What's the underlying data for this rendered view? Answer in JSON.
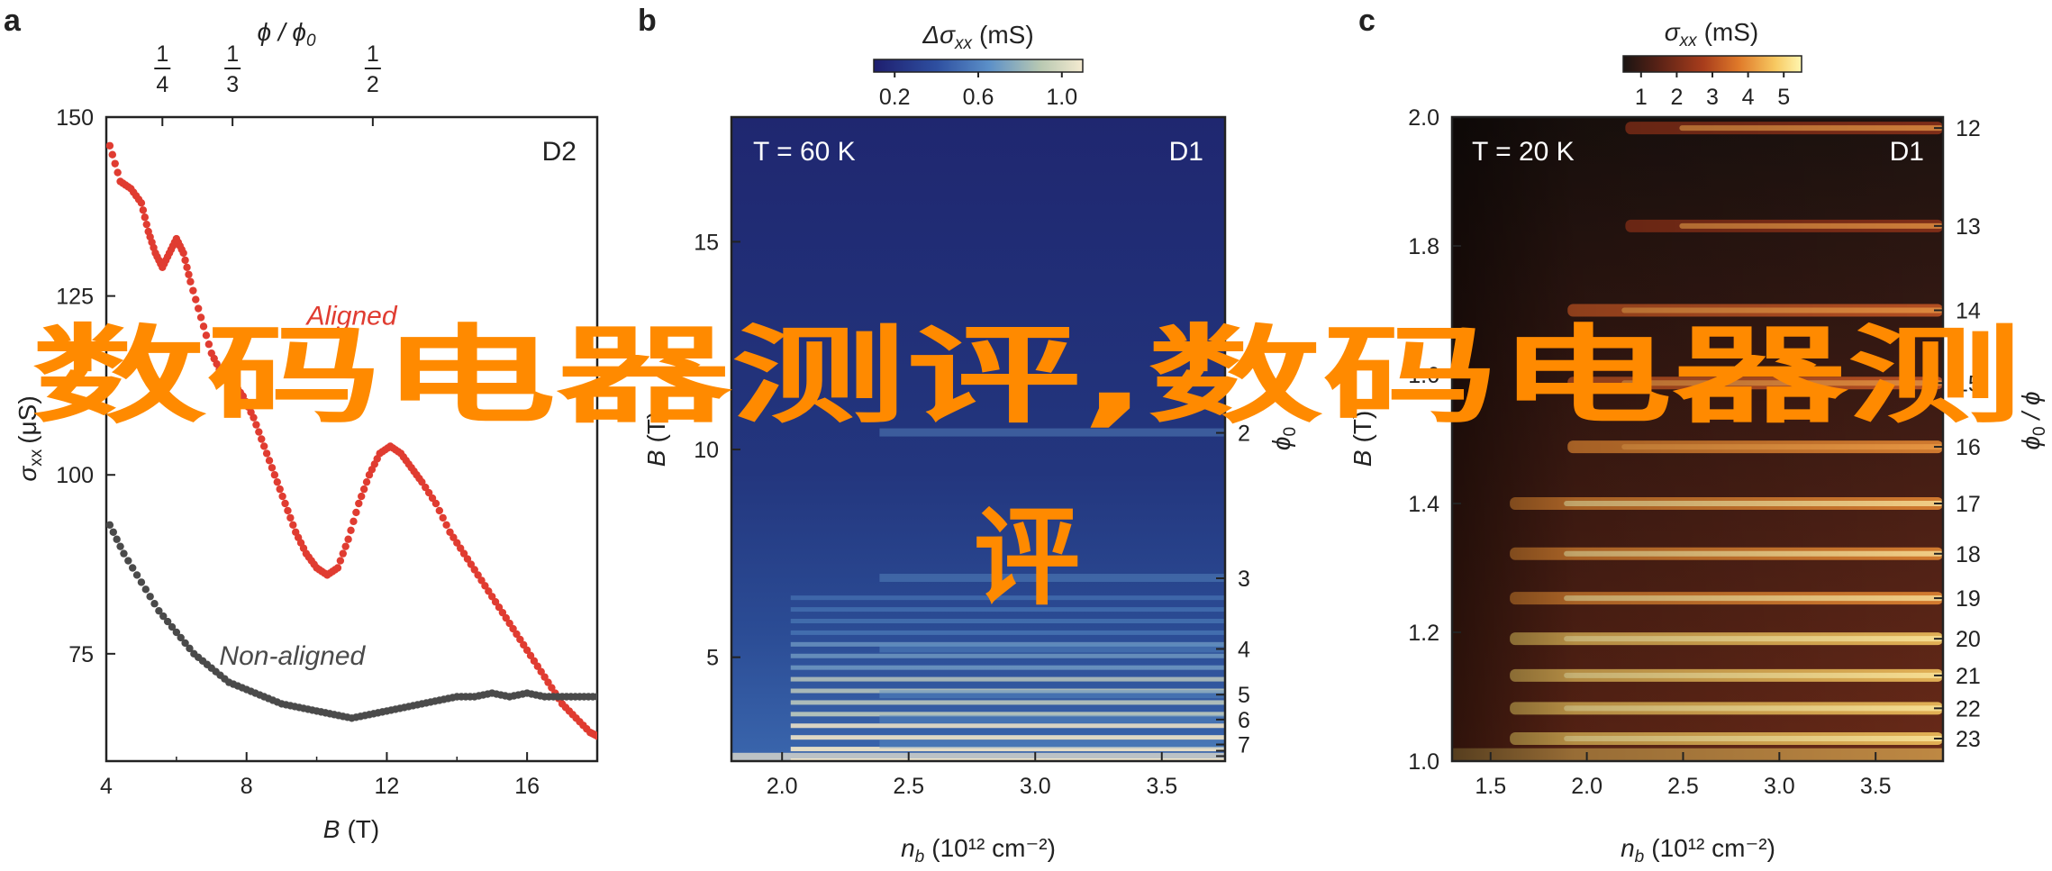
{
  "chart_data": [
    {
      "panel": "a",
      "type": "scatter",
      "xlabel_var": "B",
      "xlabel_unit": "(T)",
      "ylabel_var": "σ",
      "ylabel_sub": "xx",
      "ylabel_unit": "(μS)",
      "top_axis_label": "ϕ / ϕ",
      "top_axis_label_sub": "0",
      "top_ticks": [
        {
          "x": 5.6,
          "num": "1",
          "den": "4"
        },
        {
          "x": 7.6,
          "num": "1",
          "den": "3"
        },
        {
          "x": 11.6,
          "num": "1",
          "den": "2"
        }
      ],
      "xlim": [
        4,
        18
      ],
      "ylim": [
        60,
        150
      ],
      "xticks": [
        4,
        8,
        12,
        16
      ],
      "yticks": [
        75,
        100,
        125,
        150
      ],
      "corner_label": "D2",
      "series": [
        {
          "name": "Aligned",
          "color": "#e03c31",
          "points": [
            [
              4.1,
              146
            ],
            [
              4.4,
              141
            ],
            [
              4.7,
              140
            ],
            [
              5.0,
              138
            ],
            [
              5.2,
              134
            ],
            [
              5.4,
              131
            ],
            [
              5.6,
              129
            ],
            [
              5.8,
              131
            ],
            [
              6.0,
              133
            ],
            [
              6.2,
              131
            ],
            [
              6.4,
              127
            ],
            [
              6.7,
              122
            ],
            [
              7.0,
              117
            ],
            [
              7.3,
              114
            ],
            [
              7.6,
              113
            ],
            [
              7.9,
              111
            ],
            [
              8.2,
              108
            ],
            [
              8.5,
              104
            ],
            [
              8.8,
              100
            ],
            [
              9.1,
              96
            ],
            [
              9.4,
              92
            ],
            [
              9.7,
              89
            ],
            [
              10.0,
              87
            ],
            [
              10.3,
              86
            ],
            [
              10.6,
              87
            ],
            [
              10.9,
              91
            ],
            [
              11.2,
              96
            ],
            [
              11.5,
              100
            ],
            [
              11.8,
              103
            ],
            [
              12.1,
              104
            ],
            [
              12.4,
              103
            ],
            [
              12.7,
              101
            ],
            [
              13.0,
              99
            ],
            [
              13.4,
              96
            ],
            [
              13.8,
              92
            ],
            [
              14.2,
              89
            ],
            [
              14.6,
              86
            ],
            [
              15.0,
              83
            ],
            [
              15.4,
              80
            ],
            [
              15.8,
              77
            ],
            [
              16.2,
              74
            ],
            [
              16.6,
              71
            ],
            [
              17.0,
              68
            ],
            [
              17.4,
              66
            ],
            [
              17.8,
              64
            ],
            [
              18.0,
              63.5
            ]
          ]
        },
        {
          "name": "Non-aligned",
          "color": "#4a4a4a",
          "points": [
            [
              4.1,
              93
            ],
            [
              4.5,
              89
            ],
            [
              5.0,
              85
            ],
            [
              5.5,
              81
            ],
            [
              6.0,
              78
            ],
            [
              6.5,
              75
            ],
            [
              7.0,
              73
            ],
            [
              7.5,
              71
            ],
            [
              8.0,
              70
            ],
            [
              8.5,
              69
            ],
            [
              9.0,
              68
            ],
            [
              9.5,
              67.5
            ],
            [
              10.0,
              67
            ],
            [
              10.5,
              66.5
            ],
            [
              11.0,
              66
            ],
            [
              11.5,
              66.5
            ],
            [
              12.0,
              67
            ],
            [
              12.5,
              67.5
            ],
            [
              13.0,
              68
            ],
            [
              13.5,
              68.5
            ],
            [
              14.0,
              69
            ],
            [
              14.5,
              69
            ],
            [
              15.0,
              69.5
            ],
            [
              15.5,
              69
            ],
            [
              16.0,
              69.5
            ],
            [
              16.5,
              69
            ],
            [
              17.0,
              69
            ],
            [
              17.5,
              69
            ],
            [
              18.0,
              69
            ]
          ]
        }
      ],
      "annotations": [
        {
          "text": "Aligned",
          "x": 11.0,
          "y": 121
        },
        {
          "text": "Non-aligned",
          "x": 9.3,
          "y": 73.5
        }
      ]
    },
    {
      "panel": "b",
      "type": "heatmap",
      "temperature_label": "T = 60 K",
      "corner_label": "D1",
      "xlabel_var": "n",
      "xlabel_sub": "b",
      "xlabel_unit": "(10¹² cm⁻²)",
      "ylabel_var": "B",
      "ylabel_unit": "(T)",
      "right_axis_label": "ϕ",
      "right_axis_label_sub": "0",
      "xlim": [
        1.8,
        3.75
      ],
      "ylim": [
        2.5,
        18
      ],
      "xticks": [
        2.0,
        2.5,
        3.0,
        3.5
      ],
      "yticks": [
        5,
        10,
        15
      ],
      "right_ticks": [
        {
          "label": "2",
          "B": 10.4
        },
        {
          "label": "3",
          "B": 6.9
        },
        {
          "label": "4",
          "B": 5.2
        },
        {
          "label": "5",
          "B": 4.1
        },
        {
          "label": "6",
          "B": 3.5
        },
        {
          "label": "7",
          "B": 2.9
        }
      ],
      "colorbar": {
        "title_var": "Δσ",
        "title_sub": "xx",
        "title_unit": "(mS)",
        "ticks": [
          0.2,
          0.6,
          1.0
        ],
        "range": [
          0.1,
          1.1
        ],
        "colors": [
          "#1e1e6e",
          "#2e4fa0",
          "#5b8fc8",
          "#b9c9b2",
          "#f4ead0"
        ]
      },
      "stripes_B": [
        10.4,
        6.9,
        5.2,
        4.1,
        3.5,
        2.9
      ]
    },
    {
      "panel": "c",
      "type": "heatmap",
      "temperature_label": "T = 20 K",
      "corner_label": "D1",
      "xlabel_var": "n",
      "xlabel_sub": "b",
      "xlabel_unit": "(10¹² cm⁻²)",
      "ylabel_var": "B",
      "ylabel_unit": "(T)",
      "right_axis_label": "ϕ",
      "right_axis_label_sub": "0",
      "right_axis_label_suffix": " / ϕ",
      "xlim": [
        1.3,
        3.85
      ],
      "ylim": [
        1.0,
        2.0
      ],
      "xticks": [
        1.5,
        2.0,
        2.5,
        3.0,
        3.5
      ],
      "yticks": [
        1.0,
        1.2,
        1.4,
        1.6,
        1.8,
        2.0
      ],
      "right_ticks": [
        {
          "label": "12",
          "B": 1.983
        },
        {
          "label": "13",
          "B": 1.831
        },
        {
          "label": "14",
          "B": 1.7
        },
        {
          "label": "15",
          "B": 1.587
        },
        {
          "label": "16",
          "B": 1.488
        },
        {
          "label": "17",
          "B": 1.4
        },
        {
          "label": "18",
          "B": 1.322
        },
        {
          "label": "19",
          "B": 1.253
        },
        {
          "label": "20",
          "B": 1.19
        },
        {
          "label": "21",
          "B": 1.133
        },
        {
          "label": "22",
          "B": 1.082
        },
        {
          "label": "23",
          "B": 1.035
        }
      ],
      "colorbar": {
        "title_var": "σ",
        "title_sub": "xx",
        "title_unit": "(mS)",
        "ticks": [
          1,
          2,
          3,
          4,
          5
        ],
        "range": [
          0.5,
          5.5
        ],
        "colors": [
          "#1a1412",
          "#5a2216",
          "#a83d1c",
          "#e07a2a",
          "#f7c860",
          "#fff6b0"
        ]
      }
    }
  ],
  "watermark": {
    "line1": "数码电器测评,数码电器测",
    "line2": "评"
  }
}
